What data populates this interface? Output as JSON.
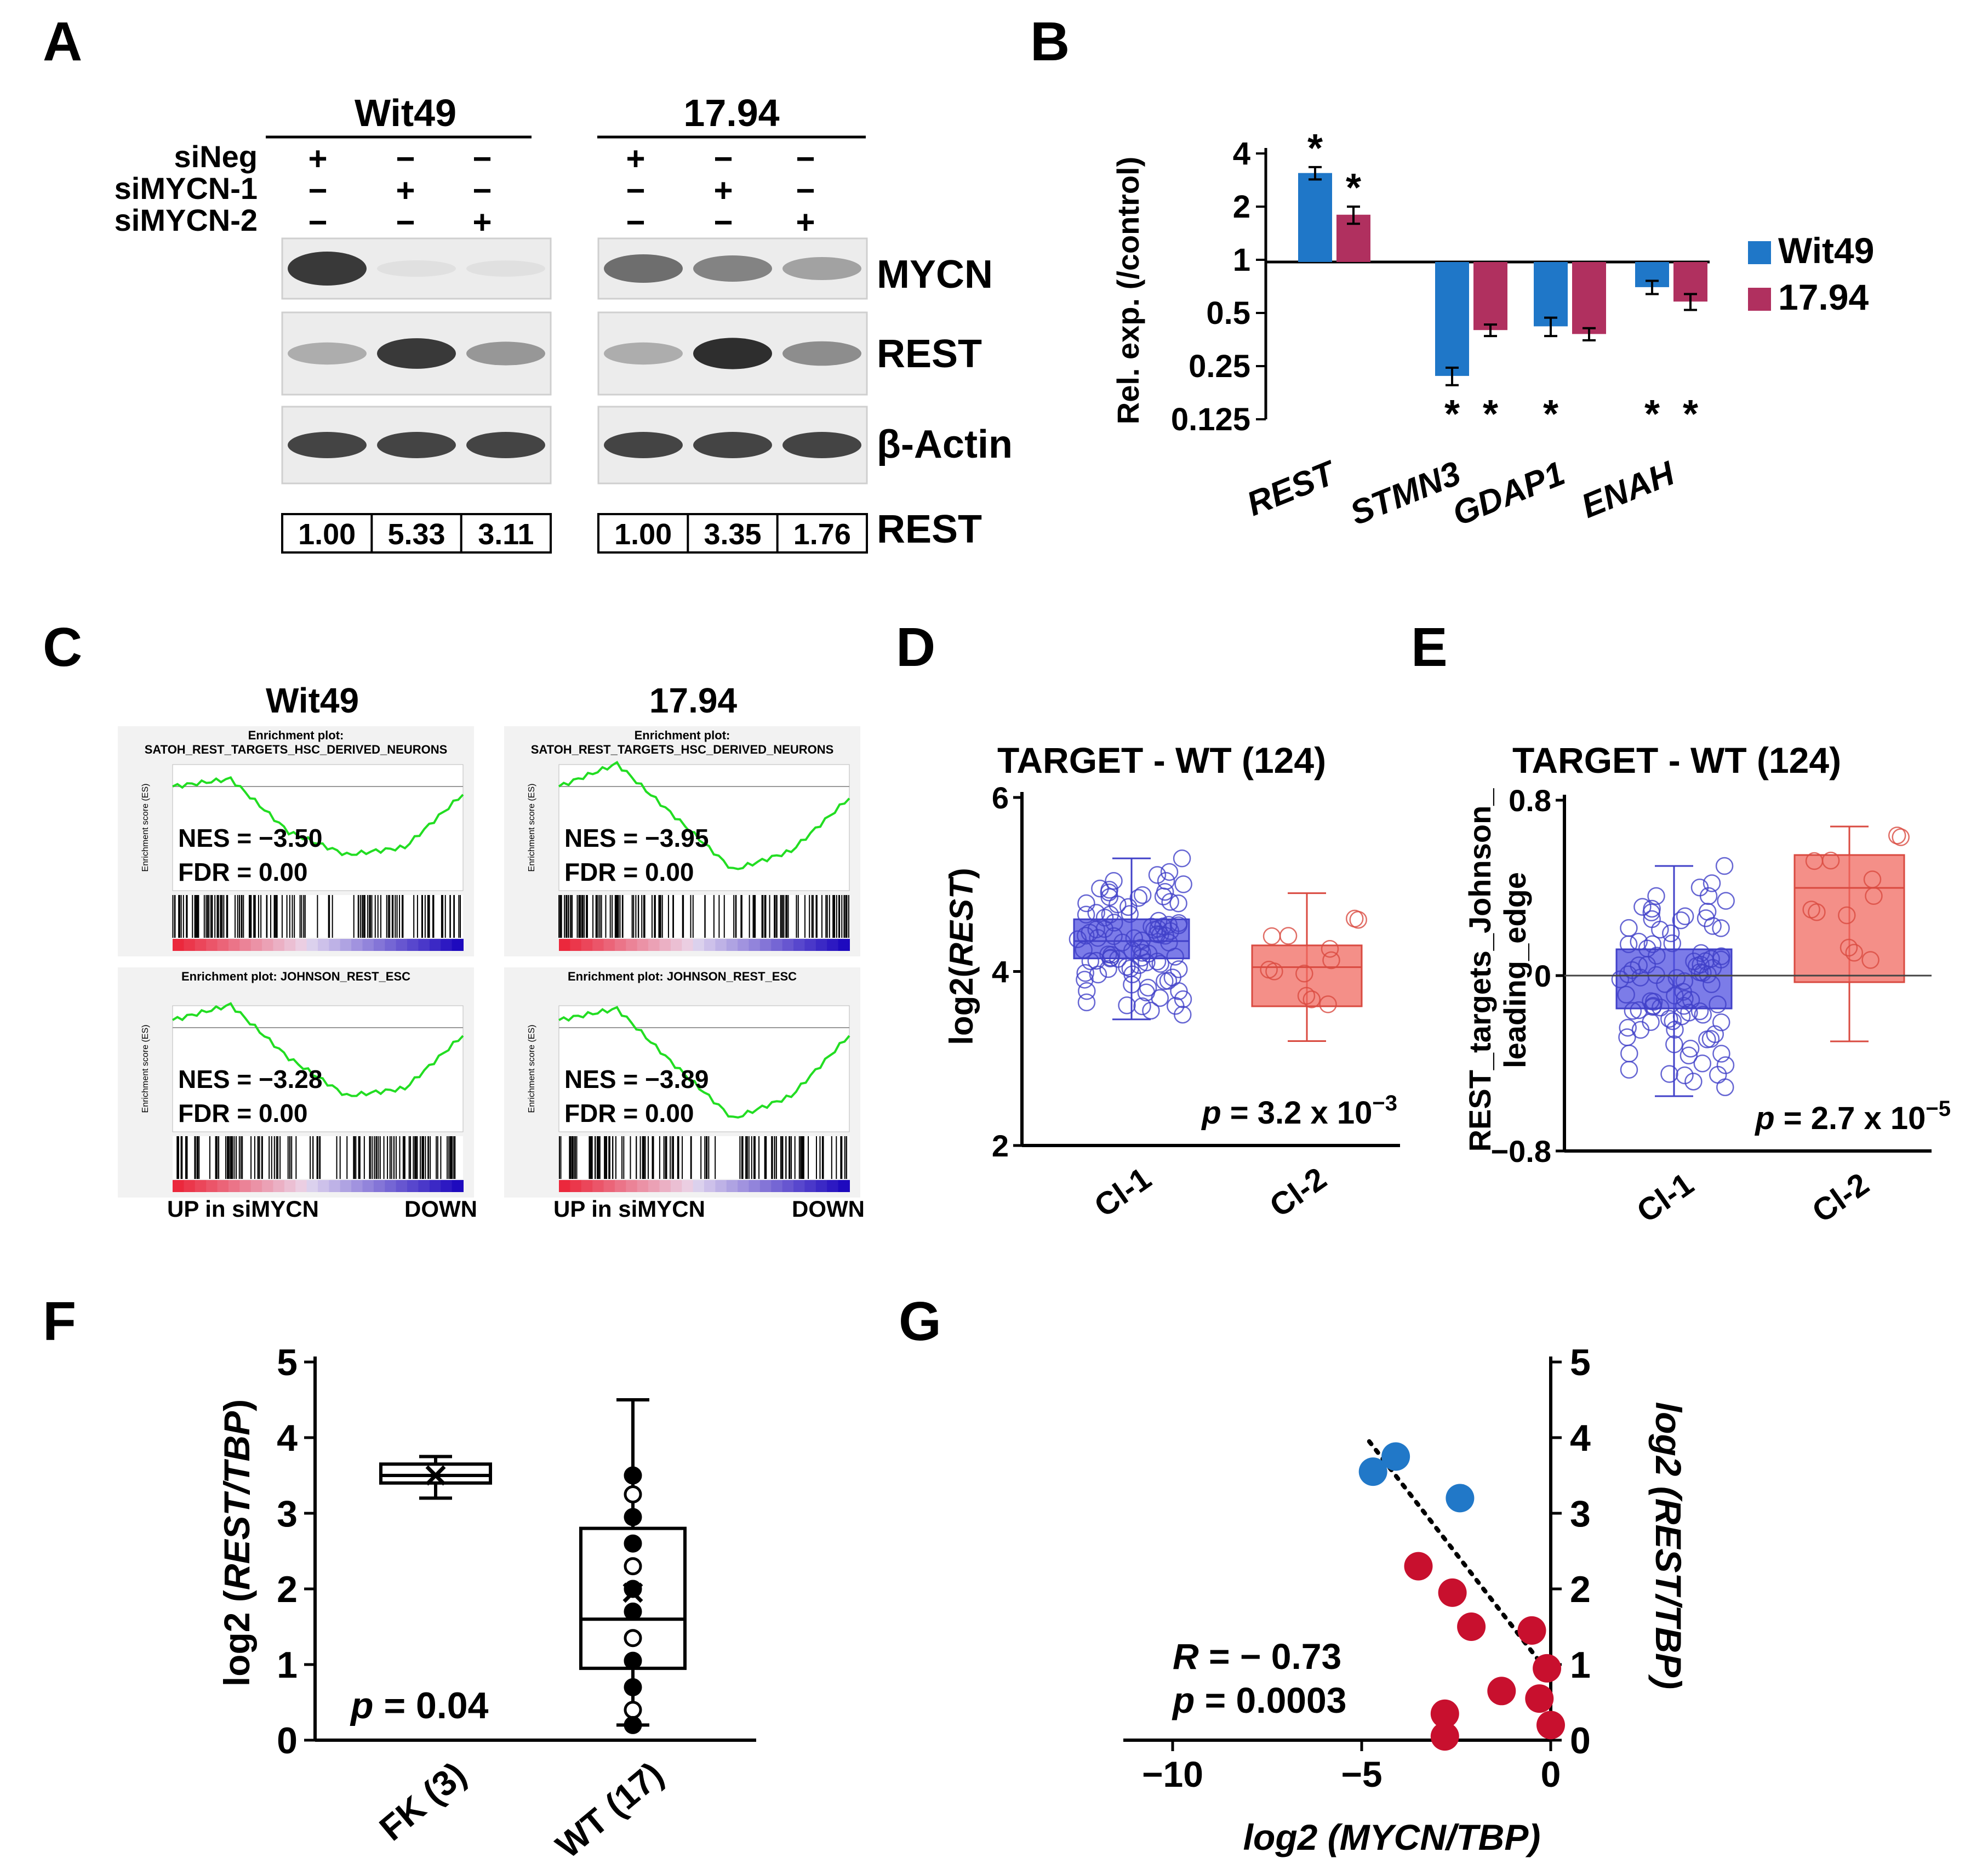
{
  "panels": {
    "a": "A",
    "b": "B",
    "c": "C",
    "d": "D",
    "e": "E",
    "f": "F",
    "g": "G"
  },
  "blot": {
    "lines": [
      "Wit49",
      "17.94"
    ],
    "conditions": [
      "siNeg",
      "siMYCN-1",
      "siMYCN-2"
    ],
    "signs": [
      [
        "+",
        "−",
        "−"
      ],
      [
        "−",
        "+",
        "−"
      ],
      [
        "−",
        "−",
        "+"
      ]
    ],
    "bands": [
      "MYCN",
      "REST",
      "β-Actin"
    ],
    "quant_label": "REST",
    "quant": [
      [
        "1.00",
        "5.33",
        "3.11"
      ],
      [
        "1.00",
        "3.35",
        "1.76"
      ]
    ],
    "mycn_level": [
      [
        0.85,
        0.05,
        0.04
      ],
      [
        0.6,
        0.5,
        0.35
      ]
    ],
    "rest_level": [
      [
        0.3,
        0.85,
        0.4
      ],
      [
        0.3,
        0.9,
        0.45
      ]
    ]
  },
  "chart_b": {
    "type": "bar",
    "y_scale": "log2",
    "ylabel": "Rel. exp. (/control)",
    "yticks": [
      "4",
      "2",
      "1",
      "0.5",
      "0.25",
      "0.125"
    ],
    "categories": [
      "REST",
      "STMN3",
      "GDAP1",
      "ENAH"
    ],
    "series": [
      {
        "name": "Wit49",
        "color": "#1f77c8",
        "values": [
          3.1,
          0.22,
          0.42,
          0.7
        ],
        "err": [
          0.25,
          0.025,
          0.05,
          0.06
        ],
        "sig": [
          true,
          true,
          true,
          true
        ]
      },
      {
        "name": "17.94",
        "color": "#b0305f",
        "values": [
          1.8,
          0.4,
          0.38,
          0.58
        ],
        "err": [
          0.2,
          0.03,
          0.03,
          0.06
        ],
        "sig": [
          true,
          true,
          false,
          true
        ]
      }
    ],
    "sig_mark": "*"
  },
  "gsea": {
    "col_titles": [
      "Wit49",
      "17.94"
    ],
    "plot_titles": [
      [
        "Enrichment plot:",
        "SATOH_REST_TARGETS_HSC_DERIVED_NEURONS"
      ],
      [
        "Enrichment plot:",
        "SATOH_REST_TARGETS_HSC_DERIVED_NEURONS"
      ],
      [
        "Enrichment plot: JOHNSON_REST_ESC"
      ],
      [
        "Enrichment plot: JOHNSON_REST_ESC"
      ]
    ],
    "es_label": "Enrichment score (ES)",
    "nes": [
      "NES = −3.50",
      "NES = −3.95",
      "NES = −3.28",
      "NES = −3.89"
    ],
    "fdr": [
      "FDR = 0.00",
      "FDR = 0.00",
      "FDR = 0.00",
      "FDR = 0.00"
    ],
    "up_label": "UP in siMYCN",
    "down_label": "DOWN"
  },
  "chart_d": {
    "type": "box",
    "title": "TARGET - WT (124)",
    "ylabel_pre": "log2(",
    "ylabel_gene": "REST",
    "ylabel_post": ")",
    "yticks": [
      "6",
      "4",
      "2"
    ],
    "ylim": [
      2,
      6
    ],
    "groups": [
      {
        "name": "Cl-1",
        "q1": 4.15,
        "median": 4.35,
        "q3": 4.6,
        "lo": 3.45,
        "hi": 5.3
      },
      {
        "name": "Cl-2",
        "q1": 3.6,
        "median": 4.05,
        "q3": 4.3,
        "lo": 3.2,
        "hi": 4.9
      }
    ],
    "p": "3.2 x 10",
    "p_exp": "−3"
  },
  "chart_e": {
    "type": "box",
    "title": "TARGET - WT (124)",
    "ylabel": [
      "REST_targets_Johnson_",
      "leading_edge"
    ],
    "yticks": [
      "0.8",
      "0",
      "−0.8"
    ],
    "ylim": [
      -0.8,
      0.8
    ],
    "groups": [
      {
        "name": "Cl-1",
        "q1": -0.15,
        "median": 0.0,
        "q3": 0.12,
        "lo": -0.55,
        "hi": 0.5
      },
      {
        "name": "Cl-2",
        "q1": -0.03,
        "median": 0.4,
        "q3": 0.55,
        "lo": -0.3,
        "hi": 0.68
      }
    ],
    "p": "2.7 x 10",
    "p_exp": "−5"
  },
  "chart_f": {
    "type": "box",
    "ylabel_pre": "log2 (",
    "ylabel_gene": "REST/TBP",
    "ylabel_post": ")",
    "yticks": [
      "5",
      "4",
      "3",
      "2",
      "1",
      "0"
    ],
    "ylim": [
      0,
      5
    ],
    "groups": [
      {
        "name": "FK (3)",
        "q1": 3.4,
        "median": 3.5,
        "q3": 3.65,
        "lo": 3.2,
        "hi": 3.75,
        "mean": 3.5
      },
      {
        "name": "WT (17)",
        "q1": 0.95,
        "median": 1.6,
        "q3": 2.8,
        "lo": 0.2,
        "hi": 4.5,
        "mean": 1.95
      }
    ],
    "wt_points": [
      3.5,
      3.25,
      2.95,
      2.6,
      2.3,
      2.0,
      1.7,
      1.35,
      1.05,
      0.7,
      0.4,
      0.2
    ],
    "p": "= 0.04"
  },
  "chart_g": {
    "type": "scatter",
    "xlabel_pre": "log2 (",
    "xlabel_gene": "MYCN/TBP",
    "xlabel_post": ")",
    "ylabel_pre": "log2 (",
    "ylabel_gene": "REST/TBP",
    "ylabel_post": ")",
    "xticks": [
      "−10",
      "−5",
      "0"
    ],
    "xlim": [
      -10,
      0
    ],
    "yticks": [
      "5",
      "4",
      "3",
      "2",
      "1",
      "0"
    ],
    "ylim": [
      0,
      5
    ],
    "blue_points": [
      [
        -4.7,
        3.55
      ],
      [
        -4.1,
        3.75
      ],
      [
        -2.4,
        3.2
      ]
    ],
    "red_points": [
      [
        -3.5,
        2.3
      ],
      [
        -2.6,
        1.95
      ],
      [
        -2.1,
        1.5
      ],
      [
        -0.5,
        1.45
      ],
      [
        -0.1,
        0.95
      ],
      [
        -1.3,
        0.65
      ],
      [
        -0.3,
        0.55
      ],
      [
        -2.8,
        0.35
      ],
      [
        -2.8,
        0.05
      ],
      [
        0,
        0.2
      ]
    ],
    "blue_color": "#2178c8",
    "red_color": "#c8102e",
    "fit": [
      [
        -4.8,
        3.95
      ],
      [
        0,
        0.85
      ]
    ],
    "r_label": "R",
    "r_value": "= − 0.73",
    "p_value": "= 0.0003"
  }
}
